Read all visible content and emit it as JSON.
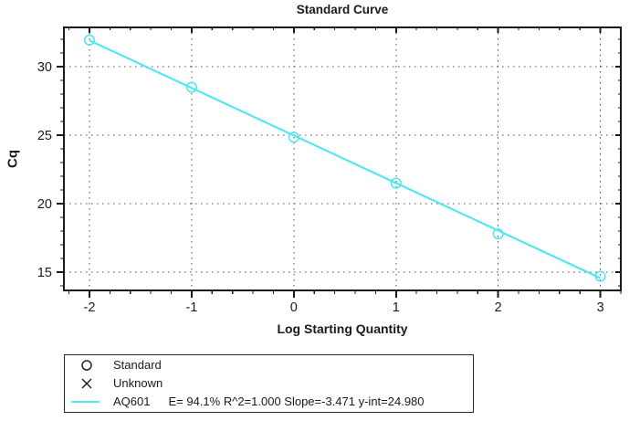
{
  "chart_data": {
    "type": "scatter",
    "title": "Standard Curve",
    "xlabel": "Log Starting Quantity",
    "ylabel": "Cq",
    "xlim": [
      -2.25,
      3.2
    ],
    "ylim": [
      13.67,
      32.87
    ],
    "x_major_ticks": [
      -2,
      -1,
      0,
      1,
      2,
      3
    ],
    "x_minor_step": 0.2,
    "y_major_ticks": [
      15,
      20,
      25,
      30
    ],
    "y_minor_step": 1,
    "grid": true,
    "trace": {
      "name": "AQ601",
      "color": "#55e6ef",
      "slope": -3.471,
      "y_intercept": 24.98,
      "x_start": -2,
      "x_end": 3,
      "efficiency_pct": 94.1,
      "r_squared": 1.0
    },
    "standards": [
      {
        "x": -2,
        "cq": 31.95
      },
      {
        "x": -1,
        "cq": 28.5
      },
      {
        "x": 0,
        "cq": 24.85
      },
      {
        "x": 1,
        "cq": 21.5
      },
      {
        "x": 2,
        "cq": 17.8
      },
      {
        "x": 3,
        "cq": 14.7
      }
    ]
  },
  "legend": {
    "items": [
      {
        "marker": "circle",
        "label": "Standard"
      },
      {
        "marker": "x",
        "label": "Unknown"
      },
      {
        "marker": "line",
        "label": "AQ601",
        "stats": "E= 94.1% R^2=1.000 Slope=-3.471 y-int=24.980"
      }
    ]
  },
  "colors": {
    "trace": "#55e6ef",
    "frame": "#1a1a1a",
    "grid": "#4d4d4d",
    "text": "#1a1a1a"
  }
}
